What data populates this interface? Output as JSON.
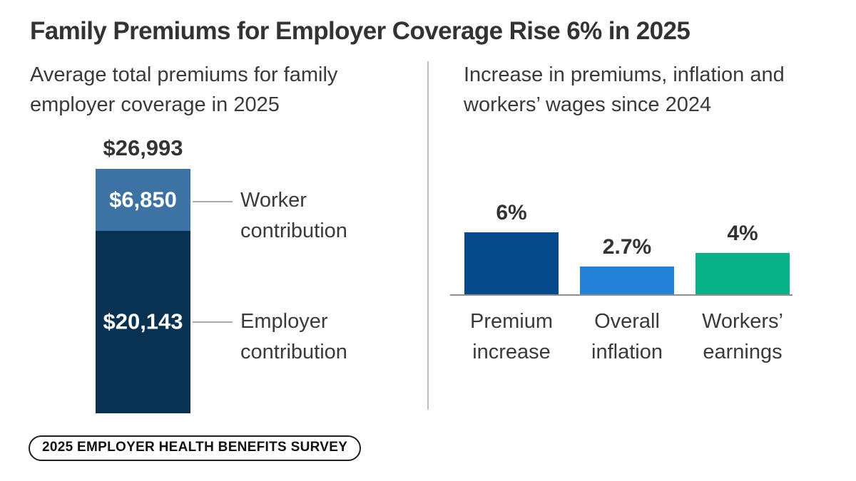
{
  "title": "Family Premiums for Employer Coverage Rise 6% in 2025",
  "panels": {
    "left": {
      "subtitle": "Average total premiums for family employer coverage in 2025"
    },
    "right": {
      "subtitle": "Increase in premiums, inflation and workers’ wages since 2024"
    }
  },
  "badge": {
    "label": "2025 EMPLOYER HEALTH BENEFITS SURVEY"
  },
  "chart_data": [
    {
      "type": "bar",
      "subtype": "stacked-single-column",
      "title": "Average total premiums for family employer coverage in 2025",
      "unit": "USD",
      "total": {
        "label": "$26,993",
        "value": 26993
      },
      "series": [
        {
          "name": "Worker contribution",
          "label": "$6,850",
          "values": [
            6850
          ],
          "color": "#3c73a4"
        },
        {
          "name": "Employer contribution",
          "label": "$20,143",
          "values": [
            20143
          ],
          "color": "#093151"
        }
      ],
      "legend_position": "right-of-bar",
      "grid": false
    },
    {
      "type": "bar",
      "title": "Increase in premiums, inflation and workers’ wages since 2024",
      "unit": "percent",
      "categories": [
        "Premium increase",
        "Overall inflation",
        "Workers’ earnings"
      ],
      "values": [
        6,
        2.7,
        4
      ],
      "value_labels": [
        "6%",
        "2.7%",
        "4%"
      ],
      "colors": [
        "#074a8c",
        "#2481d8",
        "#07b289"
      ],
      "ylim": [
        0,
        7
      ],
      "grid": false,
      "baseline": true
    }
  ]
}
